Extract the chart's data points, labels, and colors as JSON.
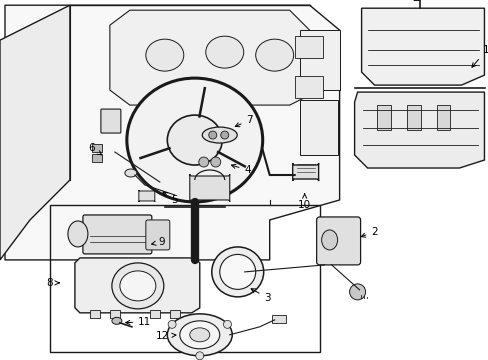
{
  "background_color": "#ffffff",
  "figure_width": 4.89,
  "figure_height": 3.6,
  "dpi": 100,
  "label_fontsize": 7.5,
  "line_color": "#1a1a1a",
  "fill_light": "#f5f5f5",
  "fill_mid": "#e0e0e0",
  "fill_dark": "#c8c8c8"
}
